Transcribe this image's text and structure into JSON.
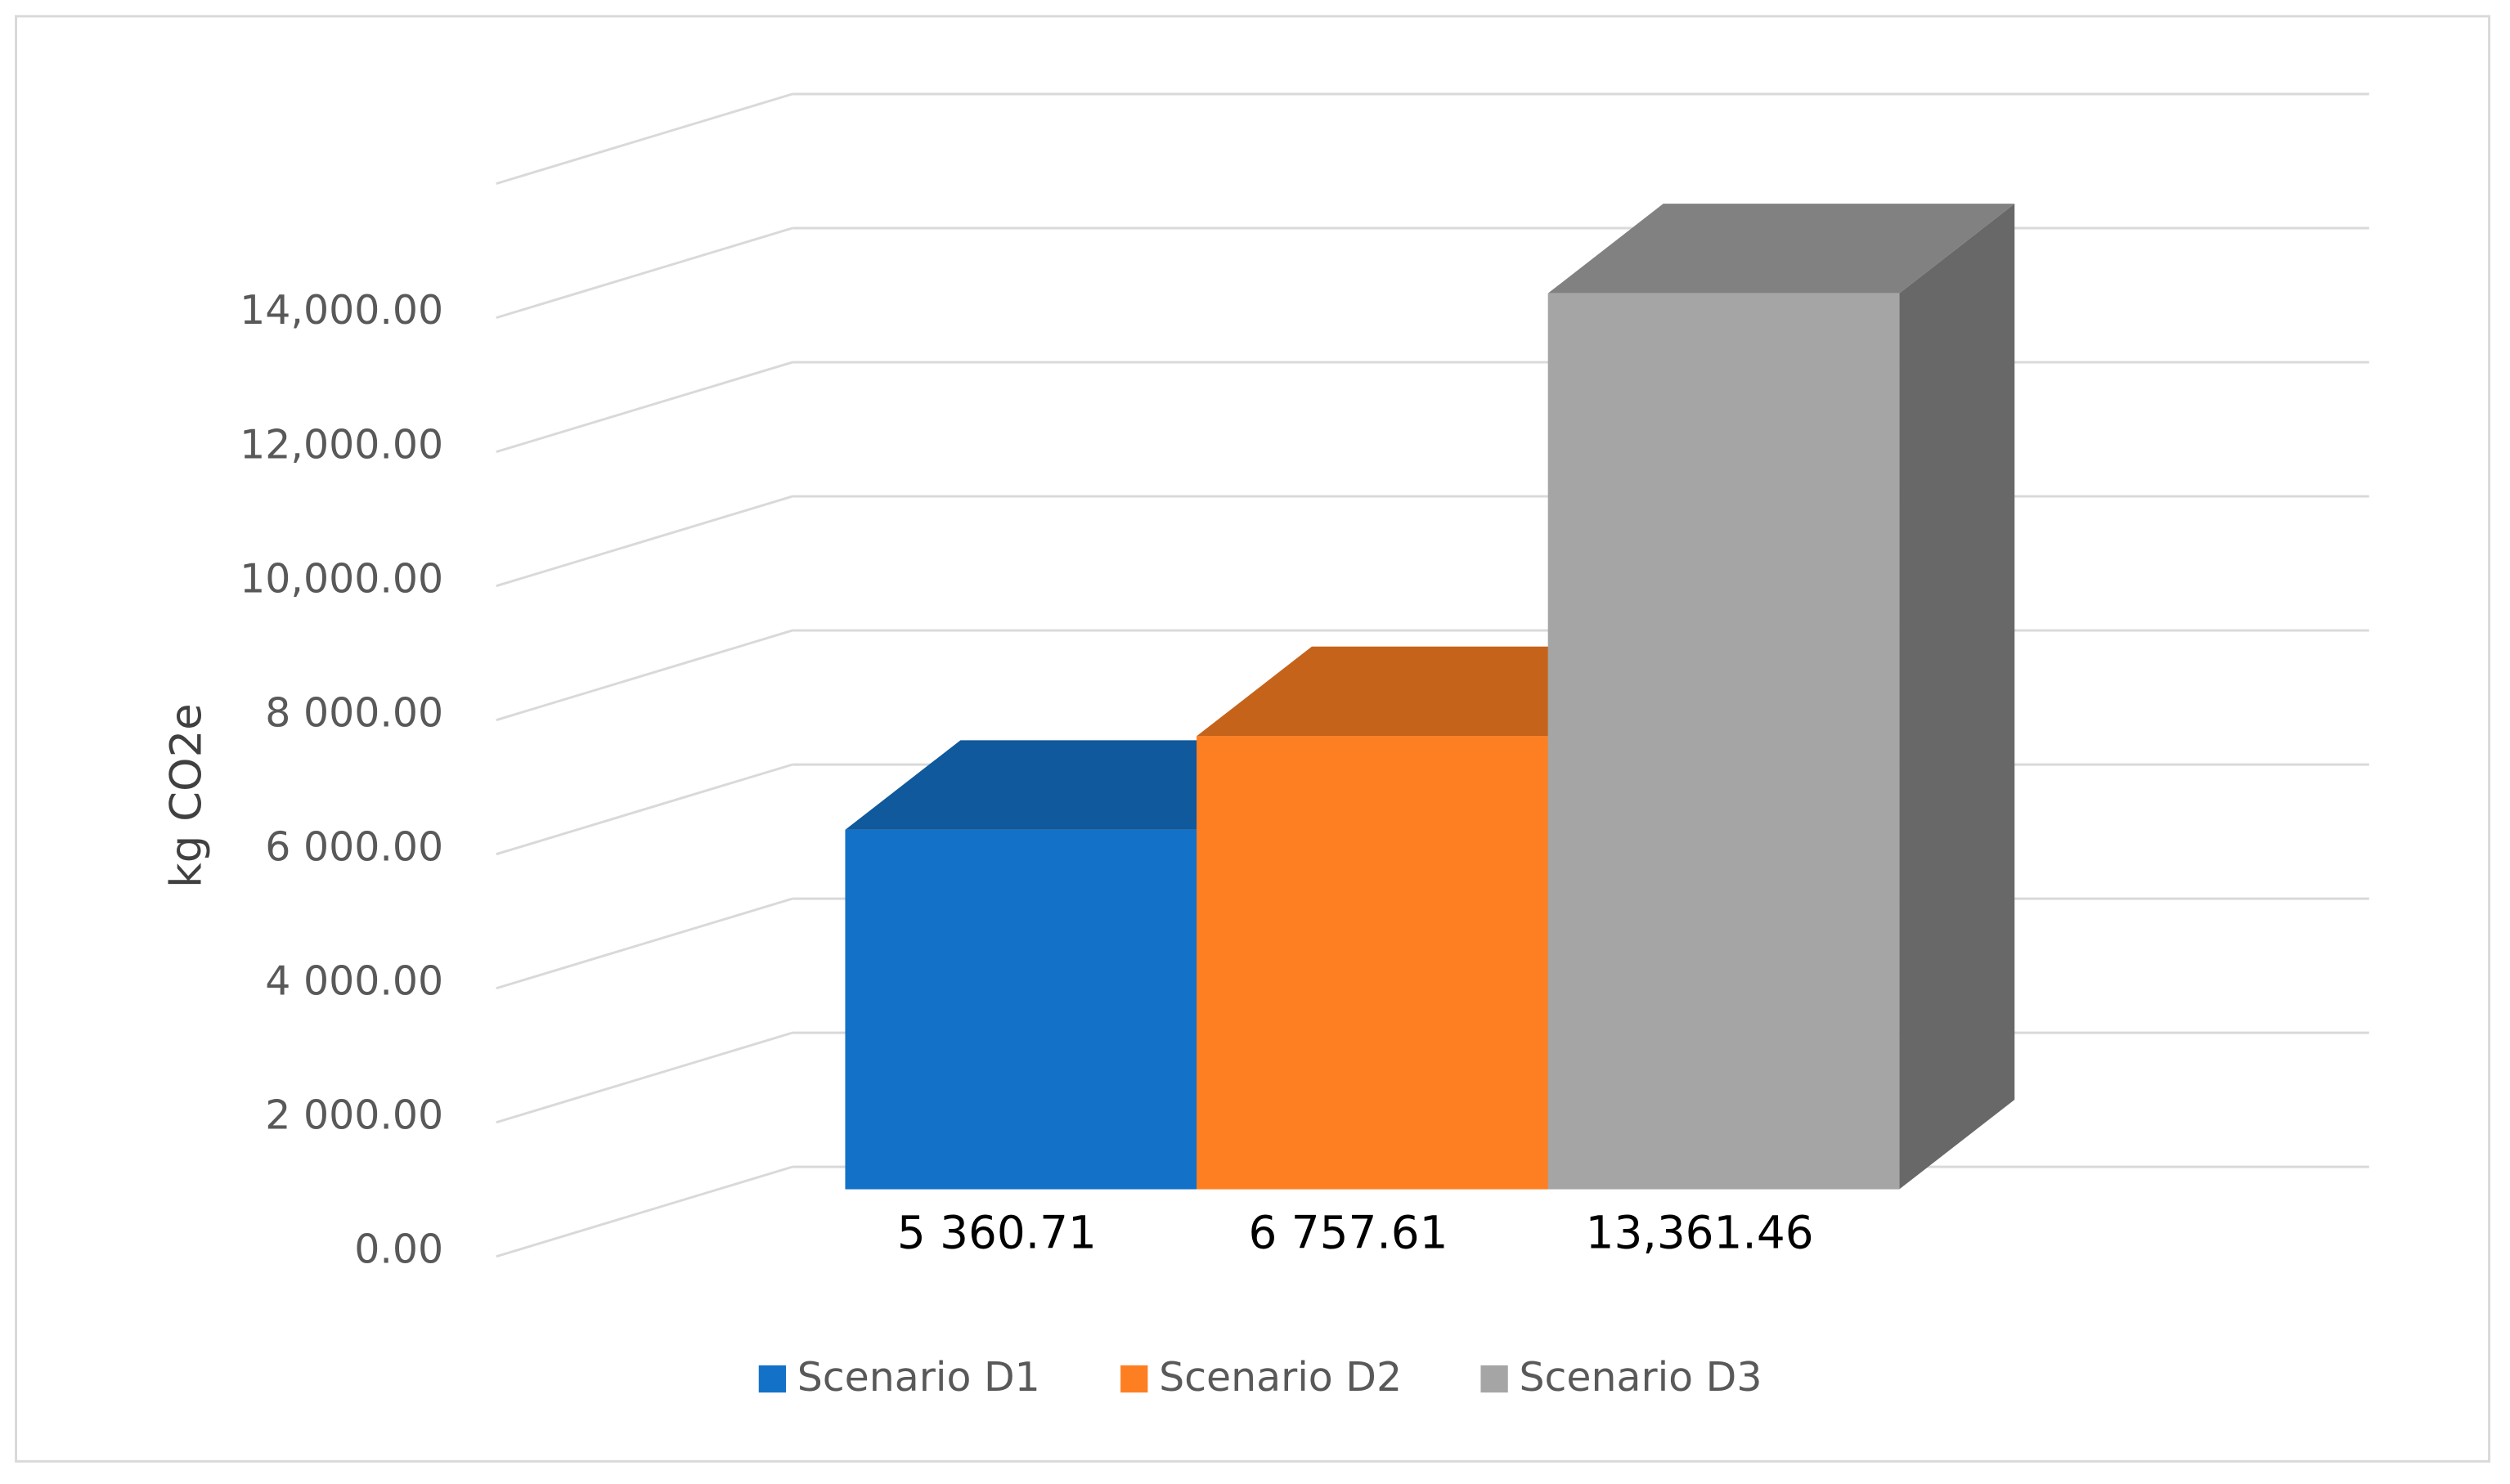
{
  "chart_data": {
    "type": "bar3d",
    "y_label": "kg CO2e",
    "series": [
      {
        "name": "Scenario D1",
        "color": "#1372c8",
        "values": [
          5360.71
        ],
        "value_labels": [
          "5 360.71"
        ]
      },
      {
        "name": "Scenario D2",
        "color": "#fe7f22",
        "values": [
          6757.61
        ],
        "value_labels": [
          "6 757.61"
        ]
      },
      {
        "name": "Scenario D3",
        "color": "#a5a5a5",
        "values": [
          13361.46
        ],
        "value_labels": [
          "13,361.46"
        ]
      }
    ],
    "ylim": [
      0,
      16000
    ],
    "yticks": [
      {
        "value": 0,
        "label": "0.00"
      },
      {
        "value": 2000,
        "label": "2 000.00"
      },
      {
        "value": 4000,
        "label": "4 000.00"
      },
      {
        "value": 6000,
        "label": "6 000.00"
      },
      {
        "value": 8000,
        "label": "8 000.00"
      },
      {
        "value": 10000,
        "label": "10,000.00"
      },
      {
        "value": 12000,
        "label": "12,000.00"
      },
      {
        "value": 14000,
        "label": "14,000.00"
      }
    ],
    "grid": true,
    "legend": "bottom"
  }
}
